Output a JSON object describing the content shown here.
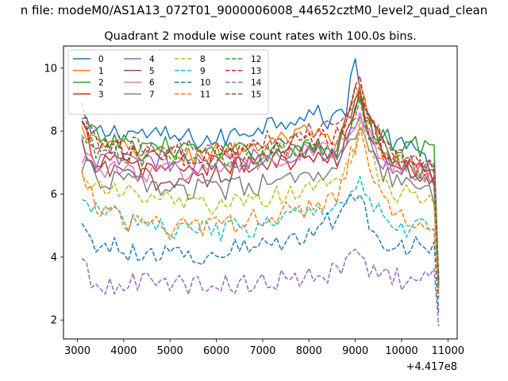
{
  "figure": {
    "suptitle": "n file: modeM0/AS1A13_072T01_9000006008_44652cztM0_level2_quad_clean",
    "title": "Quadrant 2 module wise count rates with 100.0s bins."
  },
  "chart_data": {
    "type": "line",
    "title": "Quadrant 2 module wise count rates with 100.0s bins.",
    "xlabel": "",
    "ylabel": "",
    "x_offset_label": "+4.417e8",
    "xlim": [
      2700,
      11200
    ],
    "ylim": [
      1.4,
      10.7
    ],
    "x_ticks": [
      3000,
      4000,
      5000,
      6000,
      7000,
      8000,
      9000,
      10000,
      11000
    ],
    "x_tick_labels": [
      "3000",
      "4000",
      "5000",
      "6000",
      "7000",
      "8000",
      "9000",
      "10000",
      "11000"
    ],
    "y_ticks": [
      2,
      4,
      6,
      8,
      10
    ],
    "y_tick_labels": [
      "2",
      "4",
      "6",
      "8",
      "10"
    ],
    "grid": false,
    "legend": {
      "placement": "top-left",
      "columns": 4
    },
    "x_range": [
      3100,
      10800
    ],
    "bin_width": 100,
    "series": [
      {
        "name": "0",
        "color": "#1f77b4",
        "style": "solid",
        "anchors": [
          [
            3100,
            8.3
          ],
          [
            3300,
            7.9
          ],
          [
            4000,
            8.0
          ],
          [
            5000,
            7.8
          ],
          [
            6000,
            7.7
          ],
          [
            7000,
            8.2
          ],
          [
            8000,
            8.6
          ],
          [
            8500,
            8.3
          ],
          [
            8800,
            8.8
          ],
          [
            8950,
            10.2
          ],
          [
            9050,
            10.2
          ],
          [
            9200,
            8.3
          ],
          [
            9600,
            7.8
          ],
          [
            10000,
            7.5
          ],
          [
            10500,
            7.2
          ],
          [
            10700,
            7.0
          ],
          [
            10800,
            3.2
          ]
        ]
      },
      {
        "name": "1",
        "color": "#ff7f0e",
        "style": "solid",
        "anchors": [
          [
            3100,
            8.0
          ],
          [
            3400,
            7.6
          ],
          [
            4000,
            7.4
          ],
          [
            5000,
            7.2
          ],
          [
            6000,
            7.3
          ],
          [
            7000,
            7.6
          ],
          [
            8000,
            7.9
          ],
          [
            8600,
            7.5
          ],
          [
            8900,
            8.6
          ],
          [
            9100,
            9.3
          ],
          [
            9300,
            8.4
          ],
          [
            9600,
            7.3
          ],
          [
            10000,
            7.0
          ],
          [
            10500,
            6.6
          ],
          [
            10700,
            6.3
          ],
          [
            10800,
            3.0
          ]
        ]
      },
      {
        "name": "2",
        "color": "#2ca02c",
        "style": "solid",
        "anchors": [
          [
            3100,
            8.1
          ],
          [
            3400,
            7.8
          ],
          [
            4000,
            7.6
          ],
          [
            5000,
            7.5
          ],
          [
            6000,
            7.3
          ],
          [
            7000,
            7.3
          ],
          [
            8000,
            7.5
          ],
          [
            8600,
            7.4
          ],
          [
            8900,
            8.3
          ],
          [
            9100,
            9.2
          ],
          [
            9300,
            8.2
          ],
          [
            9600,
            7.8
          ],
          [
            10000,
            7.6
          ],
          [
            10500,
            7.5
          ],
          [
            10700,
            7.4
          ],
          [
            10800,
            3.2
          ]
        ]
      },
      {
        "name": "3",
        "color": "#d62728",
        "style": "solid",
        "anchors": [
          [
            3100,
            8.1
          ],
          [
            3400,
            7.2
          ],
          [
            4000,
            6.9
          ],
          [
            5000,
            6.8
          ],
          [
            6000,
            6.9
          ],
          [
            7000,
            7.0
          ],
          [
            8000,
            7.1
          ],
          [
            8600,
            7.0
          ],
          [
            8900,
            8.3
          ],
          [
            9100,
            9.0
          ],
          [
            9300,
            8.0
          ],
          [
            9600,
            7.3
          ],
          [
            10000,
            7.0
          ],
          [
            10500,
            6.8
          ],
          [
            10700,
            6.7
          ],
          [
            10800,
            3.0
          ]
        ]
      },
      {
        "name": "4",
        "color": "#9467bd",
        "style": "solid",
        "anchors": [
          [
            3100,
            7.5
          ],
          [
            3400,
            7.0
          ],
          [
            4000,
            7.1
          ],
          [
            5000,
            7.0
          ],
          [
            6000,
            7.0
          ],
          [
            7000,
            7.2
          ],
          [
            8000,
            7.4
          ],
          [
            8600,
            7.3
          ],
          [
            8900,
            7.9
          ],
          [
            9100,
            8.4
          ],
          [
            9300,
            7.6
          ],
          [
            9600,
            7.0
          ],
          [
            10000,
            6.8
          ],
          [
            10500,
            6.6
          ],
          [
            10700,
            6.5
          ],
          [
            10800,
            3.0
          ]
        ]
      },
      {
        "name": "5",
        "color": "#8c564b",
        "style": "solid",
        "anchors": [
          [
            3100,
            7.4
          ],
          [
            3400,
            6.8
          ],
          [
            4000,
            6.6
          ],
          [
            5000,
            6.4
          ],
          [
            6000,
            6.6
          ],
          [
            7000,
            7.0
          ],
          [
            8000,
            7.4
          ],
          [
            8600,
            7.5
          ],
          [
            8900,
            8.7
          ],
          [
            9100,
            9.5
          ],
          [
            9300,
            8.6
          ],
          [
            9600,
            7.5
          ],
          [
            10000,
            6.9
          ],
          [
            10500,
            6.6
          ],
          [
            10700,
            6.5
          ],
          [
            10800,
            3.1
          ]
        ]
      },
      {
        "name": "6",
        "color": "#e377c2",
        "style": "solid",
        "anchors": [
          [
            3100,
            7.3
          ],
          [
            3400,
            6.9
          ],
          [
            4000,
            6.7
          ],
          [
            5000,
            6.7
          ],
          [
            6000,
            6.8
          ],
          [
            7000,
            7.0
          ],
          [
            8000,
            7.3
          ],
          [
            8600,
            7.4
          ],
          [
            8900,
            8.0
          ],
          [
            9100,
            8.4
          ],
          [
            9300,
            7.8
          ],
          [
            9600,
            7.1
          ],
          [
            10000,
            6.8
          ],
          [
            10500,
            6.7
          ],
          [
            10700,
            6.6
          ],
          [
            10800,
            3.0
          ]
        ]
      },
      {
        "name": "7",
        "color": "#7f7f7f",
        "style": "solid",
        "anchors": [
          [
            3100,
            7.0
          ],
          [
            3400,
            6.5
          ],
          [
            4000,
            6.4
          ],
          [
            5000,
            6.2
          ],
          [
            6000,
            6.1
          ],
          [
            7000,
            6.3
          ],
          [
            8000,
            6.5
          ],
          [
            8600,
            6.6
          ],
          [
            8900,
            7.6
          ],
          [
            9100,
            8.2
          ],
          [
            9300,
            7.4
          ],
          [
            9600,
            6.6
          ],
          [
            10000,
            6.3
          ],
          [
            10500,
            6.1
          ],
          [
            10700,
            6.0
          ],
          [
            10800,
            3.0
          ]
        ]
      },
      {
        "name": "8",
        "color": "#bcbd22",
        "style": "dashed",
        "anchors": [
          [
            3100,
            6.8
          ],
          [
            3400,
            6.2
          ],
          [
            4000,
            6.0
          ],
          [
            5000,
            5.8
          ],
          [
            6000,
            5.6
          ],
          [
            7000,
            5.8
          ],
          [
            8000,
            6.2
          ],
          [
            8600,
            6.4
          ],
          [
            8900,
            7.3
          ],
          [
            9100,
            8.0
          ],
          [
            9300,
            7.1
          ],
          [
            9600,
            6.3
          ],
          [
            10000,
            6.0
          ],
          [
            10500,
            5.9
          ],
          [
            10700,
            5.8
          ],
          [
            10800,
            2.9
          ]
        ]
      },
      {
        "name": "9",
        "color": "#17becf",
        "style": "dashed",
        "anchors": [
          [
            3100,
            6.0
          ],
          [
            3300,
            5.5
          ],
          [
            4000,
            5.2
          ],
          [
            5000,
            4.9
          ],
          [
            6000,
            4.8
          ],
          [
            7000,
            5.0
          ],
          [
            8000,
            5.4
          ],
          [
            8600,
            5.7
          ],
          [
            8900,
            6.2
          ],
          [
            9100,
            6.5
          ],
          [
            9300,
            5.9
          ],
          [
            9600,
            5.3
          ],
          [
            10000,
            5.0
          ],
          [
            10500,
            4.9
          ],
          [
            10700,
            4.8
          ],
          [
            10800,
            2.7
          ]
        ]
      },
      {
        "name": "10",
        "color": "#1f77b4",
        "style": "dashed",
        "anchors": [
          [
            3100,
            5.2
          ],
          [
            3200,
            4.6
          ],
          [
            4000,
            4.2
          ],
          [
            5000,
            4.1
          ],
          [
            6000,
            4.1
          ],
          [
            7000,
            4.4
          ],
          [
            8000,
            4.7
          ],
          [
            8600,
            5.3
          ],
          [
            8900,
            5.9
          ],
          [
            9100,
            6.2
          ],
          [
            9300,
            5.2
          ],
          [
            9600,
            4.5
          ],
          [
            10000,
            4.4
          ],
          [
            10500,
            4.3
          ],
          [
            10700,
            4.2
          ],
          [
            10800,
            2.2
          ]
        ]
      },
      {
        "name": "11",
        "color": "#ff7f0e",
        "style": "dashed",
        "anchors": [
          [
            3100,
            6.8
          ],
          [
            3400,
            5.7
          ],
          [
            4000,
            5.1
          ],
          [
            5000,
            4.9
          ],
          [
            6000,
            5.0
          ],
          [
            7000,
            5.3
          ],
          [
            8000,
            5.6
          ],
          [
            8600,
            5.9
          ],
          [
            8900,
            7.2
          ],
          [
            9100,
            7.9
          ],
          [
            9300,
            6.8
          ],
          [
            9600,
            5.7
          ],
          [
            10000,
            5.3
          ],
          [
            10500,
            5.2
          ],
          [
            10700,
            5.1
          ],
          [
            10800,
            2.8
          ]
        ]
      },
      {
        "name": "12",
        "color": "#2ca02c",
        "style": "dashed",
        "anchors": [
          [
            3100,
            7.9
          ],
          [
            3400,
            7.3
          ],
          [
            4000,
            7.2
          ],
          [
            5000,
            7.2
          ],
          [
            6000,
            7.1
          ],
          [
            7000,
            7.3
          ],
          [
            8000,
            7.5
          ],
          [
            8600,
            7.4
          ],
          [
            8900,
            8.4
          ],
          [
            9100,
            9.1
          ],
          [
            9300,
            8.0
          ],
          [
            9600,
            7.3
          ],
          [
            10000,
            7.0
          ],
          [
            10500,
            6.8
          ],
          [
            10700,
            6.7
          ],
          [
            10800,
            3.1
          ]
        ]
      },
      {
        "name": "13",
        "color": "#d62728",
        "style": "dashed",
        "anchors": [
          [
            3100,
            8.3
          ],
          [
            3400,
            7.5
          ],
          [
            4000,
            7.3
          ],
          [
            5000,
            7.2
          ],
          [
            6000,
            7.2
          ],
          [
            7000,
            7.4
          ],
          [
            8000,
            7.7
          ],
          [
            8600,
            7.8
          ],
          [
            8900,
            8.8
          ],
          [
            9100,
            9.4
          ],
          [
            9300,
            8.4
          ],
          [
            9600,
            7.4
          ],
          [
            10000,
            7.1
          ],
          [
            10500,
            6.9
          ],
          [
            10700,
            6.8
          ],
          [
            10800,
            3.2
          ]
        ]
      },
      {
        "name": "14",
        "color": "#9467bd",
        "style": "dashed",
        "anchors": [
          [
            3100,
            3.9
          ],
          [
            3300,
            3.1
          ],
          [
            4000,
            3.2
          ],
          [
            5000,
            3.1
          ],
          [
            6000,
            3.1
          ],
          [
            7000,
            3.2
          ],
          [
            8000,
            3.4
          ],
          [
            8600,
            3.5
          ],
          [
            8900,
            3.9
          ],
          [
            9100,
            4.0
          ],
          [
            9300,
            3.6
          ],
          [
            9600,
            3.3
          ],
          [
            10000,
            3.3
          ],
          [
            10500,
            3.3
          ],
          [
            10700,
            3.3
          ],
          [
            10800,
            1.8
          ]
        ]
      },
      {
        "name": "15",
        "color": "#8c564b",
        "style": "dashed",
        "anchors": [
          [
            3100,
            8.8
          ],
          [
            3400,
            7.7
          ],
          [
            4000,
            7.5
          ],
          [
            5000,
            7.4
          ],
          [
            6000,
            7.4
          ],
          [
            7000,
            7.7
          ],
          [
            8000,
            8.0
          ],
          [
            8600,
            8.1
          ],
          [
            8900,
            8.9
          ],
          [
            9100,
            9.4
          ],
          [
            9300,
            8.4
          ],
          [
            9600,
            7.6
          ],
          [
            10000,
            7.3
          ],
          [
            10500,
            7.1
          ],
          [
            10700,
            7.0
          ],
          [
            10800,
            3.2
          ]
        ]
      }
    ]
  }
}
